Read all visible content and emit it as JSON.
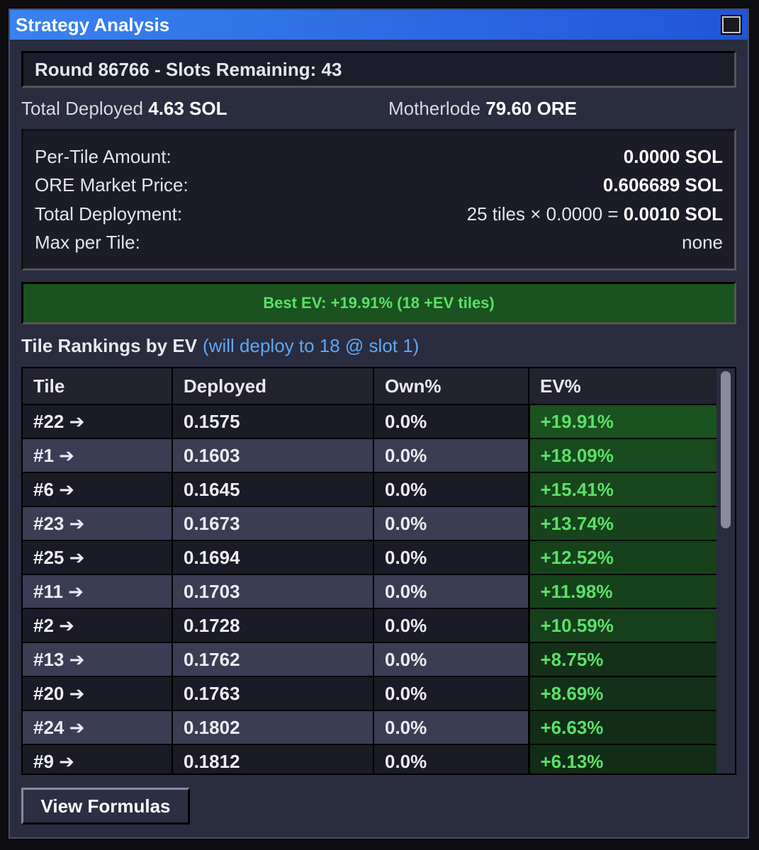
{
  "window": {
    "title": "Strategy Analysis"
  },
  "round": {
    "label": "Round 86766 - Slots Remaining: 43"
  },
  "totals": {
    "deployed_label": "Total Deployed",
    "deployed_value": "4.63 SOL",
    "motherlode_label": "Motherlode",
    "motherlode_value": "79.60 ORE"
  },
  "info": [
    {
      "label": "Per-Tile Amount:",
      "prefix": "",
      "value": "0.0000 SOL",
      "bold": true
    },
    {
      "label": "ORE Market Price:",
      "prefix": "",
      "value": "0.606689 SOL",
      "bold": true
    },
    {
      "label": "Total Deployment:",
      "prefix": "25 tiles × 0.0000 = ",
      "value": "0.0010 SOL",
      "bold": true
    },
    {
      "label": "Max per Tile:",
      "prefix": "",
      "value": "none",
      "bold": false
    }
  ],
  "best_ev": "Best EV: +19.91% (18 +EV tiles)",
  "rankings": {
    "title": "Tile Rankings by EV",
    "subtitle": "(will deploy to 18 @ slot 1)",
    "columns": [
      "Tile",
      "Deployed",
      "Own%",
      "EV%"
    ],
    "rows": [
      {
        "tile": "#22 ➔",
        "deployed": "0.1575",
        "own": "0.0%",
        "ev": "+19.91%",
        "ev_color": "#1a5220"
      },
      {
        "tile": "#1 ➔",
        "deployed": "0.1603",
        "own": "0.0%",
        "ev": "+18.09%",
        "ev_color": "#184a1e"
      },
      {
        "tile": "#6 ➔",
        "deployed": "0.1645",
        "own": "0.0%",
        "ev": "+15.41%",
        "ev_color": "#17461d"
      },
      {
        "tile": "#23 ➔",
        "deployed": "0.1673",
        "own": "0.0%",
        "ev": "+13.74%",
        "ev_color": "#17441c"
      },
      {
        "tile": "#25 ➔",
        "deployed": "0.1694",
        "own": "0.0%",
        "ev": "+12.52%",
        "ev_color": "#16421b"
      },
      {
        "tile": "#11 ➔",
        "deployed": "0.1703",
        "own": "0.0%",
        "ev": "+11.98%",
        "ev_color": "#16421b"
      },
      {
        "tile": "#2 ➔",
        "deployed": "0.1728",
        "own": "0.0%",
        "ev": "+10.59%",
        "ev_color": "#16401b"
      },
      {
        "tile": "#13 ➔",
        "deployed": "0.1762",
        "own": "0.0%",
        "ev": "+8.75%",
        "ev_color": "#123118"
      },
      {
        "tile": "#20 ➔",
        "deployed": "0.1763",
        "own": "0.0%",
        "ev": "+8.69%",
        "ev_color": "#123118"
      },
      {
        "tile": "#24 ➔",
        "deployed": "0.1802",
        "own": "0.0%",
        "ev": "+6.63%",
        "ev_color": "#112d16"
      },
      {
        "tile": "#9 ➔",
        "deployed": "0.1812",
        "own": "0.0%",
        "ev": "+6.13%",
        "ev_color": "#112d16"
      }
    ]
  },
  "buttons": {
    "formulas": "View Formulas"
  }
}
